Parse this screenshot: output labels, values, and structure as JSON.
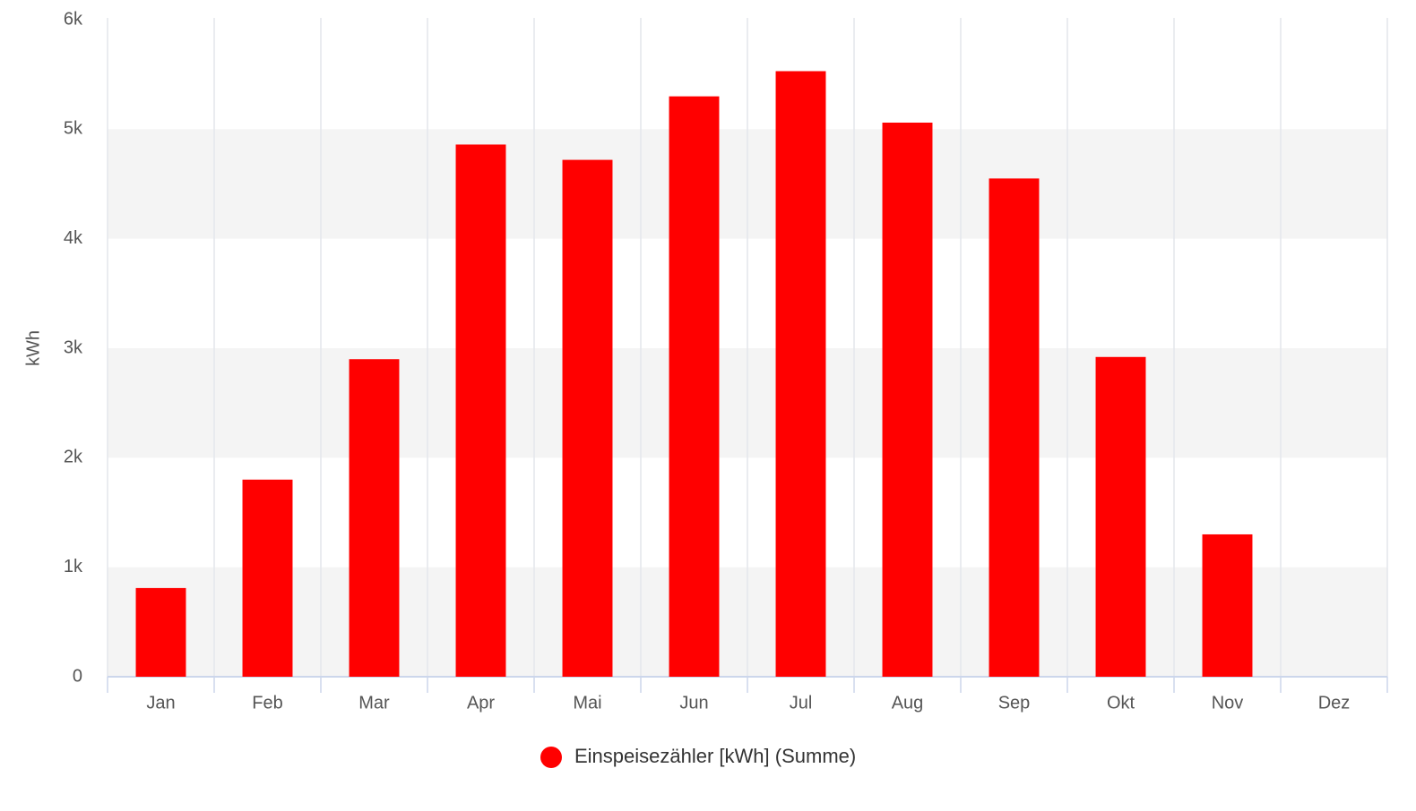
{
  "chart_data": {
    "type": "bar",
    "y_label": "kWh",
    "categories": [
      "Jan",
      "Feb",
      "Mar",
      "Apr",
      "Mai",
      "Jun",
      "Jul",
      "Aug",
      "Sep",
      "Okt",
      "Nov",
      "Dez"
    ],
    "series": [
      {
        "name": "Einspeisezähler [kWh] (Summe)",
        "color": "#ff0000",
        "values": [
          810,
          1800,
          2900,
          4860,
          4720,
          5300,
          5530,
          5060,
          4550,
          2920,
          1300,
          null
        ]
      }
    ],
    "ylim": [
      0,
      6000
    ],
    "yticks": [
      0,
      {
        "value": 1000,
        "label": "1k"
      },
      {
        "value": 2000,
        "label": "2k"
      },
      {
        "value": 3000,
        "label": "3k"
      },
      {
        "value": 4000,
        "label": "4k"
      },
      {
        "value": 5000,
        "label": "5k"
      },
      {
        "value": 6000,
        "label": "6k"
      }
    ],
    "grid": true,
    "legend": "bottom"
  }
}
